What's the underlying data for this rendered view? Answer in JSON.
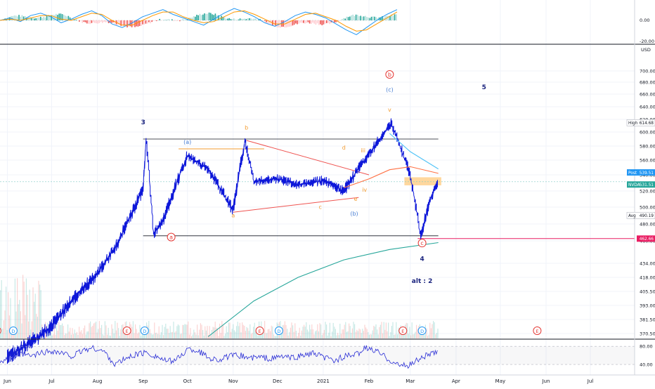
{
  "chart_data": [
    {
      "type": "line",
      "panel": "macd-oscillator",
      "y_ticks": [
        "0.00",
        "-20.00"
      ],
      "series": [
        {
          "values": [
            0,
            2,
            -1,
            4,
            6,
            3,
            -2,
            1,
            5,
            8,
            4,
            -3,
            -6,
            -2,
            3,
            6,
            9,
            5,
            2,
            -1,
            -4,
            1,
            6,
            10,
            7,
            3,
            -2,
            -5,
            -1,
            4,
            7,
            5,
            2,
            -3,
            -8,
            -12,
            -6,
            0,
            5,
            9
          ]
        },
        {
          "values": [
            0,
            1,
            0,
            2,
            4,
            4,
            1,
            0,
            3,
            6,
            5,
            0,
            -4,
            -4,
            0,
            4,
            7,
            7,
            3,
            0,
            -2,
            -1,
            3,
            7,
            8,
            5,
            1,
            -3,
            -3,
            1,
            5,
            6,
            3,
            0,
            -5,
            -9,
            -8,
            -3,
            2,
            7
          ]
        }
      ]
    },
    {
      "type": "line",
      "panel": "price",
      "currency": "USD",
      "x_labels": [
        "Jun",
        "Jul",
        "Aug",
        "Sep",
        "Oct",
        "Nov",
        "Dec",
        "2021",
        "Feb",
        "Mar",
        "Apr",
        "May",
        "Jun",
        "Jul"
      ],
      "y_ticks": [
        "700.00",
        "680.00",
        "660.00",
        "640.00",
        "620.00",
        "600.00",
        "580.00",
        "560.00",
        "540.00",
        "520.00",
        "500.00",
        "480.00",
        "460.00",
        "434.00",
        "418.00",
        "405.50",
        "393.00",
        "381.50",
        "370.50"
      ],
      "series": [
        {
          "name": "NVDA",
          "x": [
            "2020-06-01",
            "2020-06-15",
            "2020-07-01",
            "2020-07-15",
            "2020-08-01",
            "2020-08-15",
            "2020-09-01",
            "2020-09-03",
            "2020-09-08",
            "2020-09-15",
            "2020-10-01",
            "2020-10-15",
            "2020-11-01",
            "2020-11-09",
            "2020-11-15",
            "2020-12-01",
            "2020-12-15",
            "2021-01-01",
            "2021-01-15",
            "2021-02-01",
            "2021-02-16",
            "2021-03-01",
            "2021-03-08",
            "2021-03-15",
            "2021-03-20"
          ],
          "y": [
            352,
            362,
            376,
            398,
            422,
            458,
            522,
            590,
            468,
            486,
            566,
            548,
            496,
            588,
            532,
            535,
            528,
            533,
            520,
            568,
            614,
            540,
            466,
            512,
            531
          ]
        },
        {
          "name": "ma-orange",
          "x": [
            "2021-01-15",
            "2021-02-01",
            "2021-02-15",
            "2021-03-01",
            "2021-03-20"
          ],
          "y": [
            524,
            535,
            547,
            551,
            542
          ]
        },
        {
          "name": "ma-teal",
          "x": [
            "2021-02-15",
            "2021-03-01",
            "2021-03-20"
          ],
          "y": [
            598,
            572,
            548
          ]
        },
        {
          "name": "ma-green-long",
          "x": [
            "2020-10-15",
            "2020-11-15",
            "2020-12-15",
            "2021-01-15",
            "2021-02-15",
            "2021-03-20"
          ],
          "y": [
            368,
            397,
            418,
            438,
            450,
            458
          ]
        }
      ],
      "price_labels": [
        {
          "label": "High",
          "value": "614.68"
        },
        {
          "label": "Post",
          "value": "539.51"
        },
        {
          "label": "NVDA",
          "value": "531.51"
        },
        {
          "label": "Avg",
          "value": "490.19"
        },
        {
          "label": "",
          "value": "462.66"
        }
      ],
      "wave_labels": [
        {
          "text": "3",
          "x": "2020-09-01",
          "y": 612,
          "color": "#1a237e"
        },
        {
          "text": "(a)",
          "x": "2020-10-01",
          "y": 583,
          "color": "#4a7fd4"
        },
        {
          "text": "b",
          "x": "2020-11-10",
          "y": 604,
          "color": "#f39c32"
        },
        {
          "text": "a",
          "x": "2020-11-01",
          "y": 488,
          "color": "#f39c32"
        },
        {
          "text": "a",
          "x": "2020-09-20",
          "y": 462,
          "color": "#e53935",
          "circle": true
        },
        {
          "text": "c",
          "x": "2020-12-30",
          "y": 498,
          "color": "#f39c32"
        },
        {
          "text": "d",
          "x": "2021-01-15",
          "y": 575,
          "color": "#f39c32"
        },
        {
          "text": "e",
          "x": "2021-01-23",
          "y": 508,
          "color": "#f39c32"
        },
        {
          "text": "iii",
          "x": "2021-01-28",
          "y": 571,
          "color": "#f39c32"
        },
        {
          "text": "iv",
          "x": "2021-01-29",
          "y": 519,
          "color": "#f39c32"
        },
        {
          "text": "(b)",
          "x": "2021-01-22",
          "y": 490,
          "color": "#4a7fd4"
        },
        {
          "text": "v",
          "x": "2021-02-15",
          "y": 632,
          "color": "#f39c32"
        },
        {
          "text": "(c)",
          "x": "2021-02-15",
          "y": 664,
          "color": "#4a7fd4"
        },
        {
          "text": "b",
          "x": "2021-02-15",
          "y": 690,
          "color": "#e53935",
          "circle": true
        },
        {
          "text": "c",
          "x": "2021-03-09",
          "y": 455,
          "color": "#e53935",
          "circle": true
        },
        {
          "text": "4",
          "x": "2021-03-09",
          "y": 437,
          "color": "#1a237e"
        },
        {
          "text": "alt : 2",
          "x": "2021-03-09",
          "y": 413,
          "color": "#1a237e"
        },
        {
          "text": "5",
          "x": "2021-04-20",
          "y": 668,
          "color": "#1a237e"
        }
      ],
      "event_markers": [
        {
          "text": "E",
          "x": "2020-05-25",
          "color": "#e53935"
        },
        {
          "text": "D",
          "x": "2020-06-05",
          "color": "#2196f3"
        },
        {
          "text": "E",
          "x": "2020-08-21",
          "color": "#e53935"
        },
        {
          "text": "D",
          "x": "2020-09-02",
          "color": "#2196f3"
        },
        {
          "text": "E",
          "x": "2020-11-19",
          "color": "#e53935"
        },
        {
          "text": "D",
          "x": "2020-12-02",
          "color": "#2196f3"
        },
        {
          "text": "E",
          "x": "2021-02-24",
          "color": "#e53935"
        },
        {
          "text": "D",
          "x": "2021-03-09",
          "color": "#2196f3"
        },
        {
          "text": "E",
          "x": "2021-05-26",
          "color": "#e53935"
        }
      ]
    },
    {
      "type": "line",
      "panel": "rsi",
      "y_ticks": [
        "80.00",
        "40.00"
      ],
      "series": [
        {
          "values": [
            48,
            55,
            62,
            58,
            66,
            70,
            64,
            58,
            72,
            76,
            68,
            40,
            52,
            62,
            66,
            58,
            46,
            52,
            74,
            70,
            55,
            50,
            58,
            60,
            54,
            56,
            52,
            58,
            54,
            60,
            64,
            56,
            48,
            58,
            60,
            76,
            70,
            56,
            40,
            36,
            50,
            62,
            66
          ]
        }
      ]
    }
  ]
}
